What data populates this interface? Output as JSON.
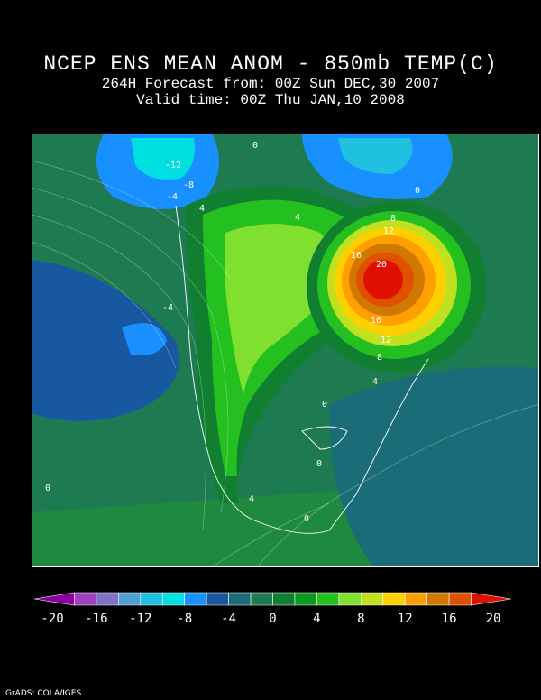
{
  "title": {
    "line1": "NCEP ENS MEAN ANOM - 850mb TEMP(C)",
    "line2": "264H Forecast from: 00Z Sun DEC,30 2007",
    "line3": "Valid time: 00Z Thu JAN,10 2008"
  },
  "map": {
    "contour_labels": [
      "-12",
      "-8",
      "-4",
      "-4",
      "0",
      "0",
      "0",
      "0",
      "0",
      "0",
      "4",
      "4",
      "4",
      "4",
      "8",
      "8",
      "12",
      "12",
      "16",
      "16",
      "20"
    ]
  },
  "colorbar": {
    "ticks": [
      "-20",
      "-16",
      "-12",
      "-8",
      "-4",
      "0",
      "4",
      "8",
      "12",
      "16",
      "20"
    ],
    "colors": [
      "#8c00a0",
      "#a040c0",
      "#8070c8",
      "#50a0d8",
      "#20c0e0",
      "#00e0e0",
      "#1890ff",
      "#1858a0",
      "#1a6c78",
      "#1e7a50",
      "#108030",
      "#0a9a20",
      "#24c020",
      "#80e030",
      "#c0e020",
      "#ffd000",
      "#ffa000",
      "#d07800",
      "#e05000",
      "#e01000"
    ]
  },
  "footer": "GrADS: COLA/IGES"
}
